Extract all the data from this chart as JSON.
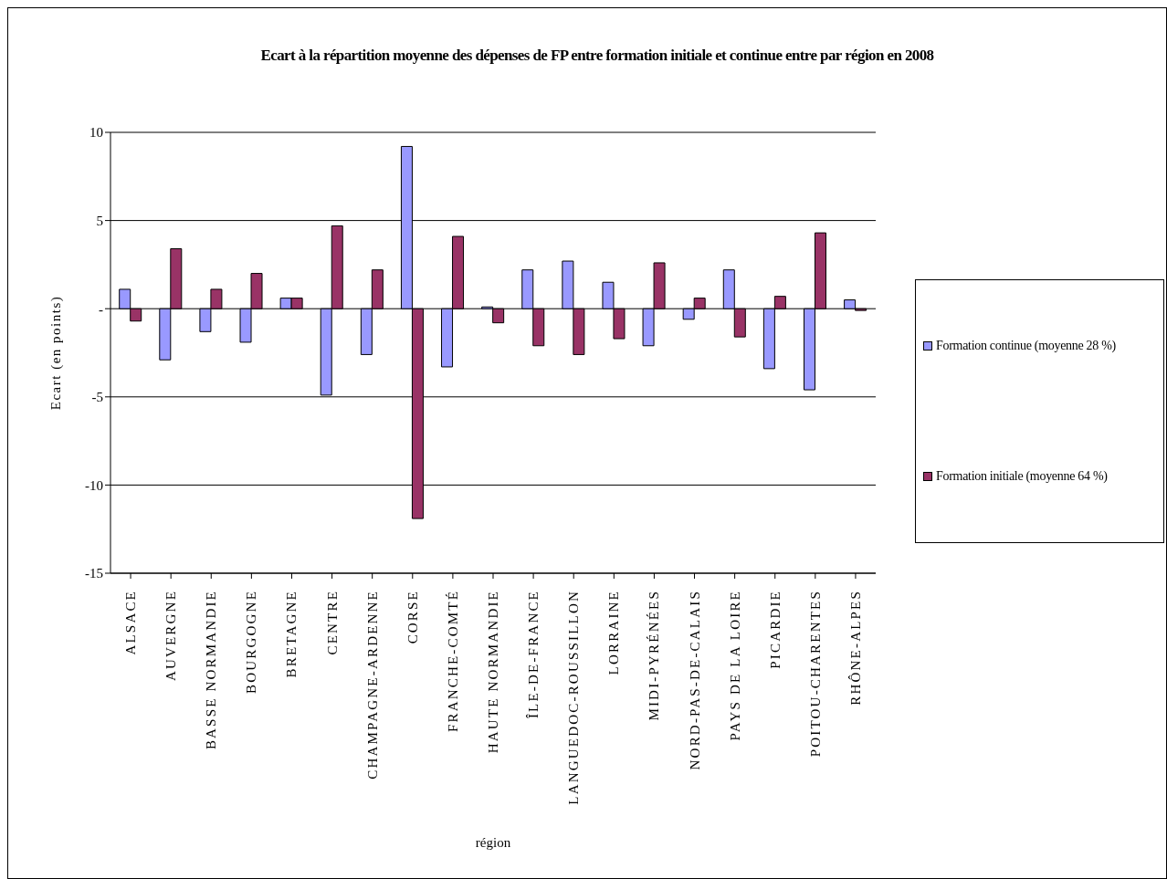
{
  "chart_data": {
    "type": "bar",
    "title": "Ecart à la répartition moyenne des dépenses de FP entre formation initiale et continue entre  par région en 2008",
    "xlabel": "région",
    "ylabel": "Ecart (en points)",
    "categories": [
      "ALSACE",
      "AUVERGNE",
      "BASSE NORMANDIE",
      "BOURGOGNE",
      "BRETAGNE",
      "CENTRE",
      "CHAMPAGNE-ARDENNE",
      "CORSE",
      "FRANCHE-COMTÉ",
      "HAUTE NORMANDIE",
      "ÎLE-DE-FRANCE",
      "LANGUEDOC-ROUSSILLON",
      "LORRAINE",
      "MIDI-PYRÉNÉES",
      "NORD-PAS-DE-CALAIS",
      "PAYS DE LA LOIRE",
      "PICARDIE",
      "POITOU-CHARENTES",
      "RHÔNE-ALPES"
    ],
    "series": [
      {
        "name": "Formation continue (moyenne 28 %)",
        "color": "#9999ff",
        "values": [
          1.1,
          -2.9,
          -1.3,
          -1.9,
          0.6,
          -4.9,
          -2.6,
          9.2,
          -3.3,
          0.1,
          2.2,
          2.7,
          1.5,
          -2.1,
          -0.6,
          2.2,
          -3.4,
          -4.6,
          0.5
        ]
      },
      {
        "name": "Formation initiale (moyenne 64 %)",
        "color": "#993366",
        "values": [
          -0.7,
          3.4,
          1.1,
          2.0,
          0.6,
          4.7,
          2.2,
          -11.9,
          4.1,
          -0.8,
          -2.1,
          -2.6,
          -1.7,
          2.6,
          0.6,
          -1.6,
          0.7,
          4.3,
          -0.1
        ]
      }
    ],
    "ylim": [
      -15,
      10
    ],
    "yticks": [
      -15,
      -10,
      -5,
      {
        "value": 0,
        "label": "-"
      },
      5,
      10
    ],
    "grid": "y",
    "legend": "right"
  }
}
